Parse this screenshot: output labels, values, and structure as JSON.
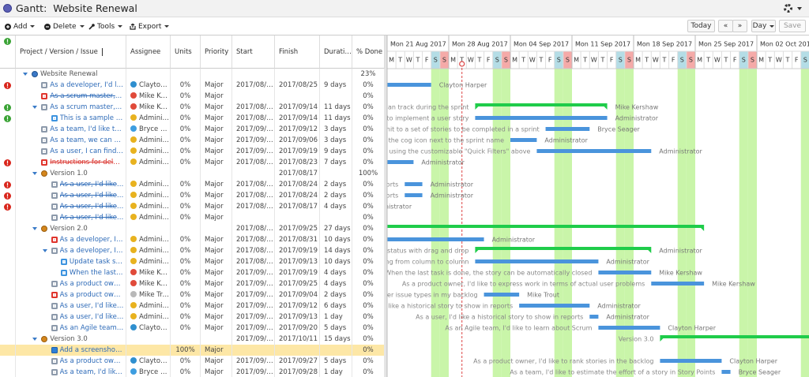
{
  "header": {
    "title": "Gantt:  Website Renewal"
  },
  "toolbar": {
    "add": "Add",
    "delete": "Delete",
    "tools": "Tools",
    "export": "Export",
    "today": "Today",
    "prev": "«",
    "next": "»",
    "zoom": "Day",
    "save": "Save"
  },
  "grid": {
    "columns": [
      "Project / Version / Issue",
      "Assignee",
      "Units",
      "Priority",
      "Start",
      "Finish",
      "Duration",
      "% Done"
    ],
    "rows": [
      {
        "level": 0,
        "icon": "project",
        "name": "Website Renewal",
        "done": "23%"
      },
      {
        "flag": "red",
        "level": 1,
        "icon": "story",
        "name": "As a developer, I'd like to update story status during the sprint",
        "assignee": "Clayton Harper",
        "units": "0%",
        "priority": "Major",
        "start": "2017/08/15",
        "finish": "2017/08/25",
        "duration": "9 days",
        "done": "0%"
      },
      {
        "level": 1,
        "icon": "bug",
        "name": "As a scrum master, I can see the progress of a sprint via the Burndown Chart",
        "strike": true,
        "assignee": "Mike Kershaw",
        "units": "0%",
        "priority": "Major",
        "done": "0%"
      },
      {
        "flag": "green",
        "level": 1,
        "icon": "story",
        "name": "As a scrum master, I'd like to see the work we can track during the sprint",
        "assignee": "Mike Kershaw",
        "units": "0%",
        "priority": "Major",
        "start": "2017/08/31",
        "finish": "2017/09/14",
        "duration": "11 days",
        "done": "0%"
      },
      {
        "flag": "green",
        "level": 2,
        "icon": "task",
        "name": "This is a sample task. Tasks are used to break down the steps to implement a user story",
        "assignee": "Administrator",
        "units": "0%",
        "priority": "Major",
        "start": "2017/08/31",
        "finish": "2017/09/14",
        "duration": "11 days",
        "done": "0%"
      },
      {
        "level": 1,
        "icon": "story",
        "name": "As a team, I'd like to commit to a set of stories to be completed in a sprint",
        "assignee": "Bryce Seager",
        "units": "0%",
        "priority": "Major",
        "start": "2017/09/08",
        "finish": "2017/09/12",
        "duration": "3 days",
        "done": "0%"
      },
      {
        "level": 1,
        "icon": "story",
        "name": "As a team, we can finish the sprint by clicking the cog icon next to the sprint name",
        "assignee": "Administrator",
        "units": "0%",
        "priority": "Major",
        "start": "2017/09/04",
        "finish": "2017/09/06",
        "duration": "3 days",
        "done": "0%"
      },
      {
        "level": 1,
        "icon": "story",
        "name": "As a user, I can find important items on the board by using the customizable \"Quick Filters\" above",
        "assignee": "Administrator",
        "units": "0%",
        "priority": "Major",
        "start": "2017/09/07",
        "finish": "2017/09/19",
        "duration": "9 days",
        "done": "0%"
      },
      {
        "flag": "red",
        "level": 1,
        "icon": "bug",
        "name": "Instructions for deleting this sample board and project are in the description for this issue",
        "strike": true,
        "late": true,
        "assignee": "Administrator",
        "units": "0%",
        "priority": "Major",
        "start": "2017/08/15",
        "finish": "2017/08/23",
        "duration": "7 days",
        "done": "0%"
      },
      {
        "level": 1,
        "icon": "version",
        "name": "Version 1.0",
        "finish": "2017/08/17",
        "done": "100%"
      },
      {
        "flag": "red",
        "level": 2,
        "icon": "story",
        "name": "As a user, I'd like a historical story to show in reports",
        "strike": true,
        "assignee": "Administrator",
        "units": "0%",
        "priority": "Major",
        "start": "2017/08/23",
        "finish": "2017/08/24",
        "duration": "2 days",
        "done": "0%"
      },
      {
        "flag": "red",
        "level": 2,
        "icon": "story",
        "name": "As a user, I'd like a historical story to show in reports",
        "strike": true,
        "assignee": "Administrator",
        "units": "0%",
        "priority": "Major",
        "start": "2017/08/23",
        "finish": "2017/08/24",
        "duration": "2 days",
        "done": "0%"
      },
      {
        "flag": "red",
        "level": 2,
        "icon": "story",
        "name": "As a user, I'd like a historical story to show in reports",
        "strike": true,
        "assignee": "Administrator",
        "units": "0%",
        "priority": "Major",
        "start": "2017/08/14",
        "finish": "2017/08/17",
        "duration": "4 days",
        "done": "0%"
      },
      {
        "level": 2,
        "icon": "story",
        "name": "As a user, I'd like a historical story to show in reports",
        "strike": true,
        "assignee": "Administrator",
        "units": "0%",
        "priority": "Major",
        "done": "0%"
      },
      {
        "level": 1,
        "icon": "version",
        "name": "Version 2.0",
        "start": "2017/08/18",
        "finish": "2017/09/25",
        "duration": "27 days",
        "done": "0%"
      },
      {
        "level": 2,
        "icon": "bug",
        "name": "As a developer, I can update details on an item using the Detail View",
        "assignee": "Administrator",
        "units": "0%",
        "priority": "Major",
        "start": "2017/08/18",
        "finish": "2017/08/31",
        "duration": "10 days",
        "done": "0%"
      },
      {
        "level": 2,
        "icon": "story",
        "name": "As a developer, I can update story and task status with drag and drop",
        "assignee": "Administrator",
        "units": "0%",
        "priority": "Major",
        "start": "2017/08/31",
        "finish": "2017/09/19",
        "duration": "14 days",
        "done": "0%"
      },
      {
        "level": 3,
        "icon": "task",
        "name": "Update task status by dragging and dropping from column to column",
        "assignee": "Administrator",
        "units": "0%",
        "priority": "Major",
        "start": "2017/08/31",
        "finish": "2017/09/13",
        "duration": "10 days",
        "done": "0%"
      },
      {
        "level": 3,
        "icon": "task",
        "name": "When the last task is done, the story can be automatically closed",
        "assignee": "Mike Kershaw",
        "units": "0%",
        "priority": "Major",
        "start": "2017/09/14",
        "finish": "2017/09/19",
        "duration": "4 days",
        "done": "0%"
      },
      {
        "level": 2,
        "icon": "story",
        "name": "As a product owner, I'd like to express work in terms of actual user problems",
        "assignee": "Mike Kershaw",
        "units": "0%",
        "priority": "Major",
        "start": "2017/09/20",
        "finish": "2017/09/25",
        "duration": "4 days",
        "done": "0%"
      },
      {
        "level": 2,
        "icon": "bug",
        "name": "As a product owner, I'd like to include bugs, tasks and other issue types in my backlog",
        "assignee": "Mike Trout",
        "units": "0%",
        "priority": "Major",
        "start": "2017/09/01",
        "finish": "2017/09/04",
        "duration": "2 days",
        "done": "0%"
      },
      {
        "level": 2,
        "icon": "story",
        "name": "As a user, I'd like a historical story to show in reports",
        "assignee": "Administrator",
        "units": "0%",
        "priority": "Major",
        "start": "2017/09/05",
        "finish": "2017/09/12",
        "duration": "6 days",
        "done": "0%"
      },
      {
        "level": 2,
        "icon": "story",
        "name": "As a user, I'd like a historical story to show in reports",
        "assignee": "Administrator",
        "units": "0%",
        "priority": "Major",
        "start": "2017/09/13",
        "finish": "2017/09/13",
        "duration": "1 day",
        "done": "0%"
      },
      {
        "level": 2,
        "icon": "story",
        "name": "As an Agile team, I'd like to learn about Scrum",
        "assignee": "Clayton Harper",
        "units": "0%",
        "priority": "Major",
        "start": "2017/09/14",
        "finish": "2017/09/20",
        "duration": "5 days",
        "done": "0%"
      },
      {
        "level": 1,
        "icon": "version",
        "name": "Version 3.0",
        "start": "2017/09/21",
        "finish": "2017/10/11",
        "duration": "15 days",
        "done": "0%"
      },
      {
        "level": 2,
        "icon": "check",
        "selected": true,
        "name": "Add a screenshot to the sample board",
        "units": "100%",
        "priority": "Major",
        "done": "0%"
      },
      {
        "level": 2,
        "icon": "story",
        "name": "As a product owner, I'd like to rank stories in the backlog",
        "assignee": "Clayton Harper",
        "units": "0%",
        "priority": "Major",
        "start": "2017/09/21",
        "finish": "2017/09/27",
        "duration": "5 days",
        "done": "0%"
      },
      {
        "level": 2,
        "icon": "story",
        "name": "As a team, I'd like to estimate the effort of a story in Story Points",
        "assignee": "Bryce Seager",
        "units": "0%",
        "priority": "Major",
        "start": "2017/09/28",
        "finish": "2017/09/28",
        "duration": "1 day",
        "done": "0%"
      }
    ]
  },
  "timeline": {
    "weeks": [
      "Mon 21 Aug 2017",
      "Mon 28 Aug 2017",
      "Mon 04 Sep 2017",
      "Mon 11 Sep 2017",
      "Mon 18 Sep 2017",
      "Mon 25 Sep 2017",
      "Mon 02 Oct 2017"
    ],
    "weekdays": [
      "M",
      "T",
      "W",
      "T",
      "F",
      "S",
      "S"
    ]
  }
}
